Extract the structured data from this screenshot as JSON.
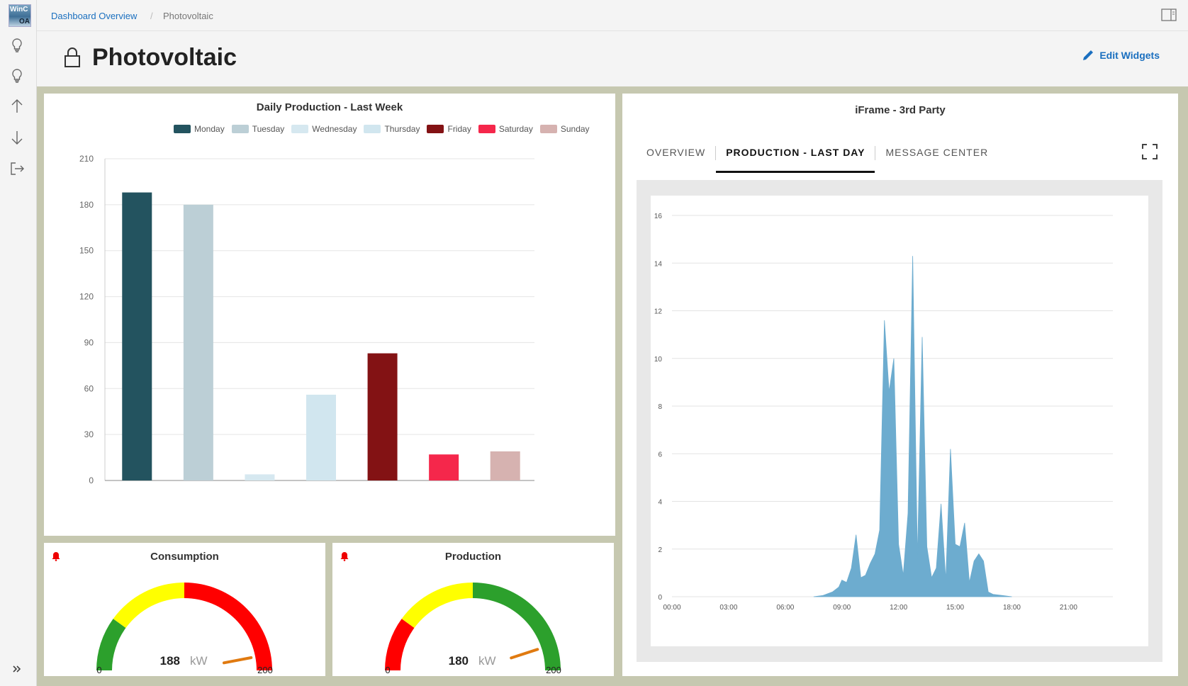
{
  "app": {
    "logo_text_1": "WinC",
    "logo_text_2": "OA"
  },
  "breadcrumb": {
    "link": "Dashboard Overview",
    "separator": "/",
    "current": "Photovoltaic"
  },
  "page": {
    "title": "Photovoltaic",
    "edit_label": "Edit Widgets"
  },
  "sidebar": {
    "items": [
      "lightbulb-icon",
      "lightbulb-icon",
      "arrow-up-icon",
      "arrow-down-icon",
      "logout-icon",
      "expand-icon"
    ]
  },
  "daily_chart": {
    "title": "Daily Production - Last Week",
    "legend": [
      {
        "label": "Monday",
        "color": "#23535f"
      },
      {
        "label": "Tuesday",
        "color": "#bccfd6"
      },
      {
        "label": "Wednesday",
        "color": "#d6e8f0"
      },
      {
        "label": "Thursday",
        "color": "#d1e6ef"
      },
      {
        "label": "Friday",
        "color": "#831214"
      },
      {
        "label": "Saturday",
        "color": "#f5274b"
      },
      {
        "label": "Sunday",
        "color": "#d6b2b0"
      }
    ]
  },
  "iframe_widget": {
    "title": "iFrame - 3rd Party",
    "tabs": [
      "OVERVIEW",
      "PRODUCTION - LAST DAY",
      "MESSAGE CENTER"
    ],
    "active_tab": 1
  },
  "consumption": {
    "title": "Consumption",
    "value": "188",
    "unit": "kW",
    "min": "0",
    "max": "200"
  },
  "production": {
    "title": "Production",
    "value": "180",
    "unit": "kW",
    "min": "0",
    "max": "200"
  },
  "chart_data": [
    {
      "type": "bar",
      "title": "Daily Production - Last Week",
      "categories": [
        "Monday",
        "Tuesday",
        "Wednesday",
        "Thursday",
        "Friday",
        "Saturday",
        "Sunday"
      ],
      "values": [
        188,
        180,
        4,
        56,
        83,
        17,
        19
      ],
      "colors": [
        "#23535f",
        "#bccfd6",
        "#d6e8f0",
        "#d1e6ef",
        "#831214",
        "#f5274b",
        "#d6b2b0"
      ],
      "ylim": [
        0,
        210
      ],
      "yticks": [
        "0",
        "30",
        "60",
        "90",
        "120",
        "150",
        "180",
        "210"
      ],
      "grid": true,
      "legend": "top"
    },
    {
      "type": "area",
      "title": "",
      "color": "#6daccf",
      "ylim": [
        0,
        16
      ],
      "yticks": [
        "0",
        "2",
        "4",
        "6",
        "8",
        "10",
        "12",
        "14",
        "16"
      ],
      "xticks": [
        "00:00",
        "03:00",
        "06:00",
        "09:00",
        "12:00",
        "15:00",
        "18:00",
        "21:00"
      ],
      "x": [
        "07:30",
        "08:00",
        "08:30",
        "08:50",
        "09:00",
        "09:15",
        "09:30",
        "09:45",
        "10:00",
        "10:15",
        "10:30",
        "10:45",
        "11:00",
        "11:15",
        "11:30",
        "11:45",
        "12:00",
        "12:15",
        "12:30",
        "12:45",
        "13:00",
        "13:15",
        "13:30",
        "13:45",
        "14:00",
        "14:15",
        "14:30",
        "14:45",
        "15:00",
        "15:15",
        "15:30",
        "15:45",
        "16:00",
        "16:15",
        "16:30",
        "16:45",
        "17:00",
        "17:30",
        "18:00"
      ],
      "y": [
        0,
        0.05,
        0.2,
        0.4,
        0.7,
        0.6,
        1.2,
        2.6,
        0.8,
        0.9,
        1.4,
        1.8,
        2.8,
        11.6,
        8.6,
        10.0,
        2.2,
        0.9,
        3.5,
        14.3,
        1.6,
        10.9,
        2.1,
        0.8,
        1.2,
        3.9,
        0.7,
        6.2,
        2.2,
        2.1,
        3.1,
        0.6,
        1.5,
        1.8,
        1.5,
        0.2,
        0.1,
        0.05,
        0
      ]
    },
    {
      "type": "gauge",
      "title": "Consumption",
      "value": 188,
      "min": 0,
      "max": 200,
      "bands": [
        {
          "from": 0,
          "to": 40,
          "color": "#2ca02c"
        },
        {
          "from": 40,
          "to": 100,
          "color": "#ffff00"
        },
        {
          "from": 100,
          "to": 200,
          "color": "#ff0000"
        }
      ]
    },
    {
      "type": "gauge",
      "title": "Production",
      "value": 180,
      "min": 0,
      "max": 200,
      "bands": [
        {
          "from": 0,
          "to": 40,
          "color": "#ff0000"
        },
        {
          "from": 40,
          "to": 100,
          "color": "#ffff00"
        },
        {
          "from": 100,
          "to": 200,
          "color": "#2ca02c"
        }
      ]
    }
  ]
}
